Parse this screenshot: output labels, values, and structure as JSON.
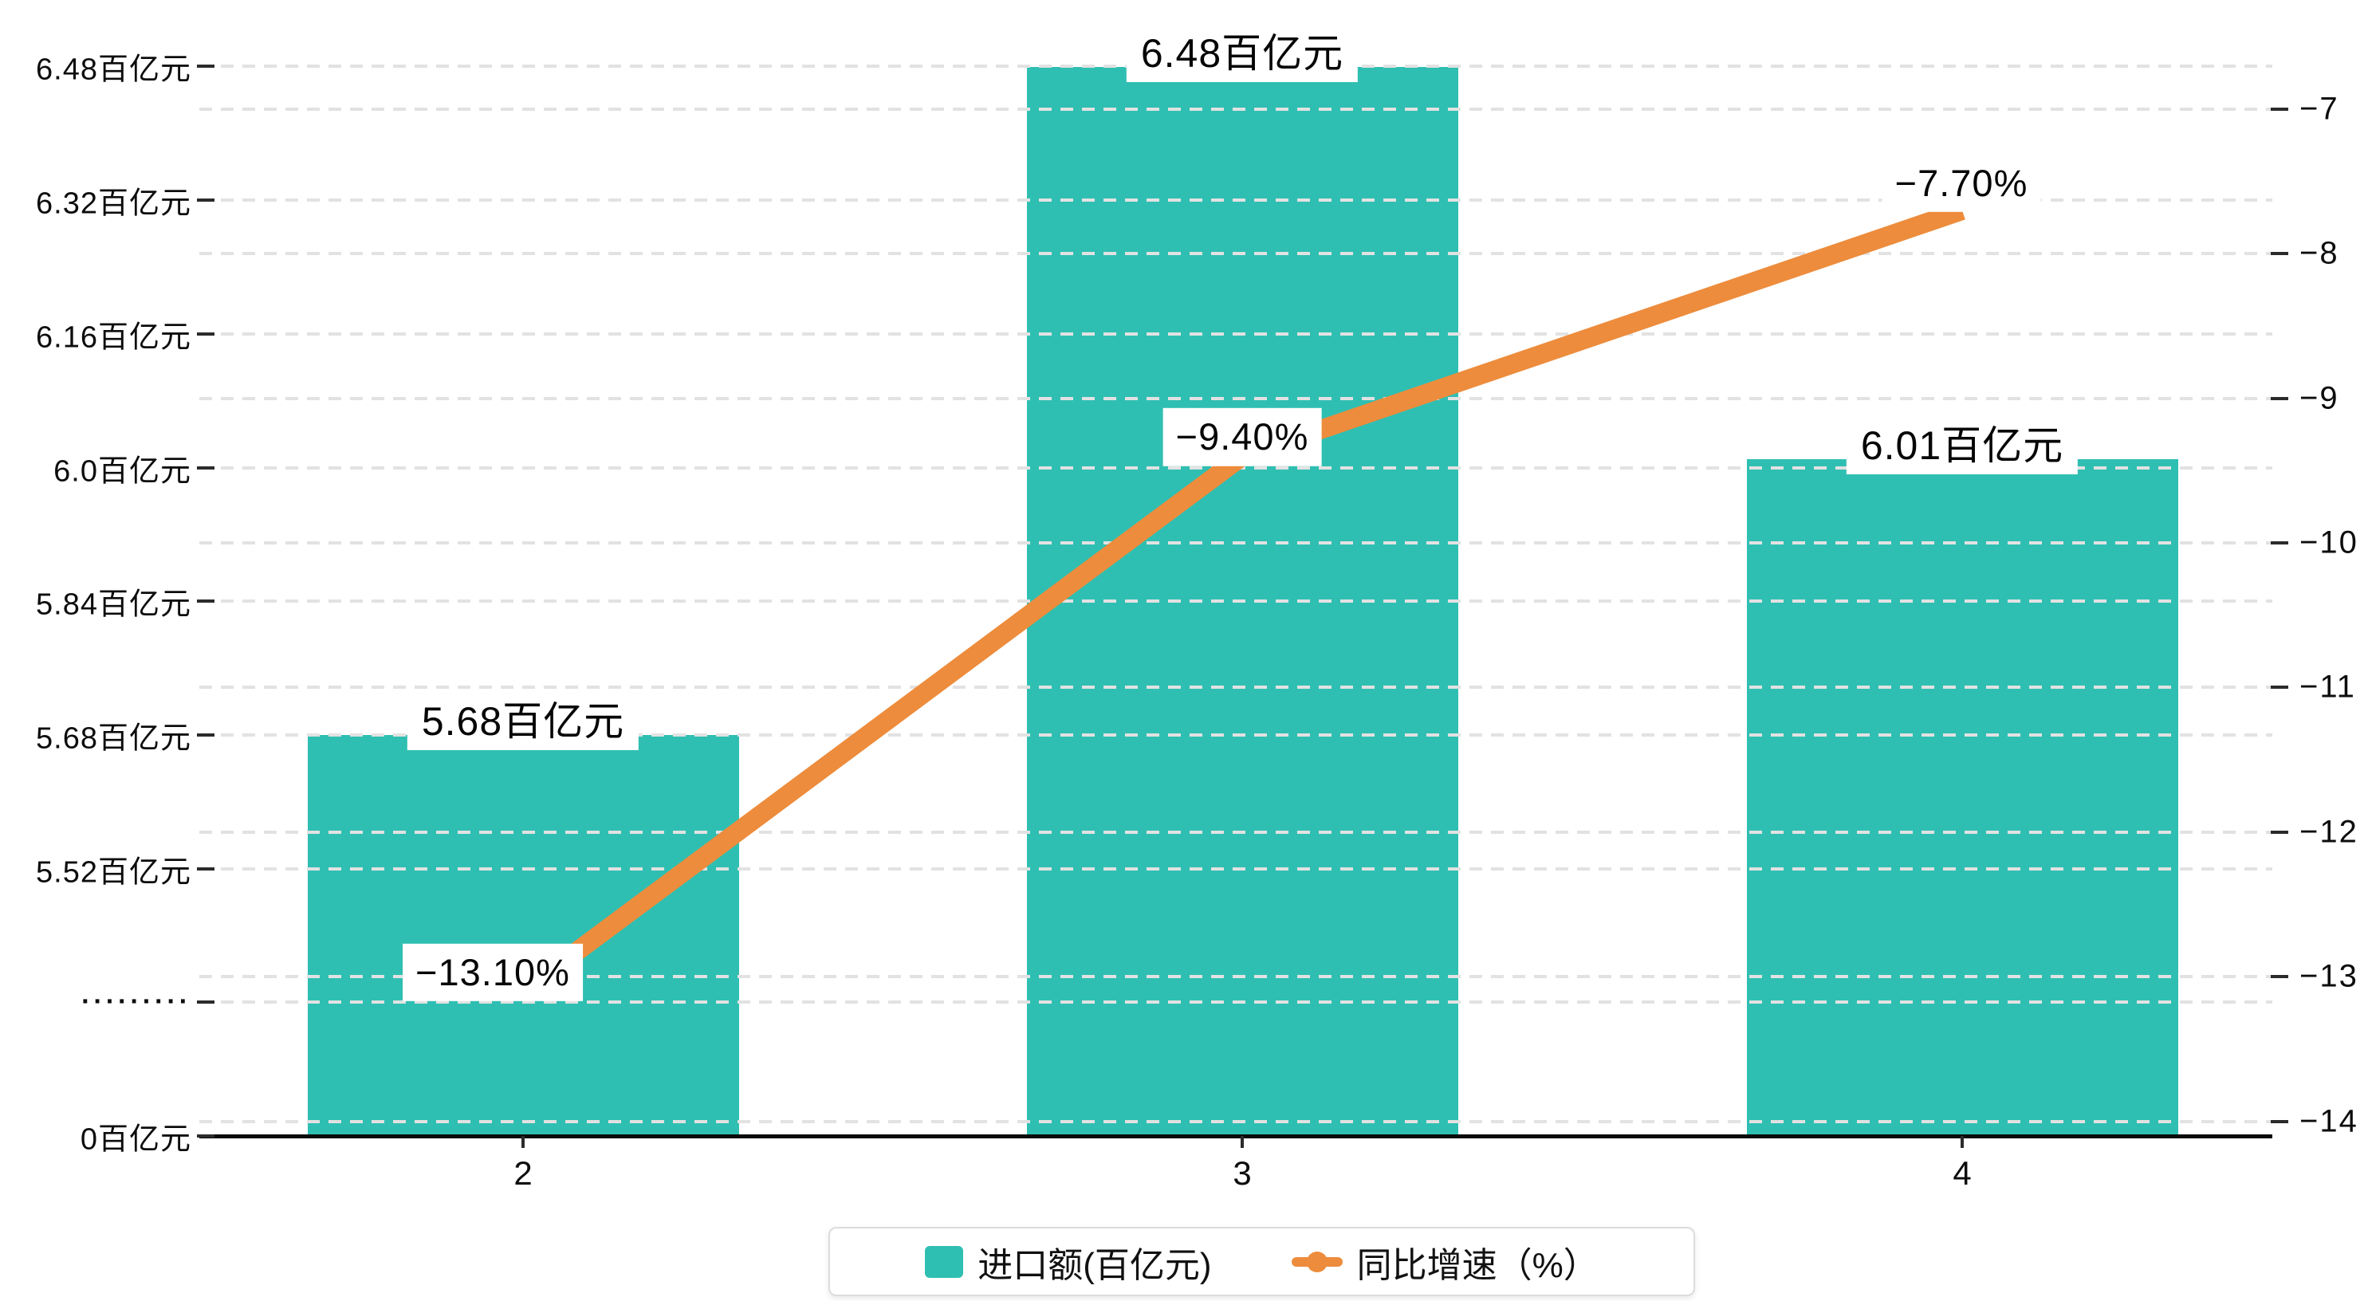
{
  "chart_data": {
    "type": "bar+line dual-axis combo",
    "categories": [
      "2",
      "3",
      "4"
    ],
    "series": [
      {
        "name": "进口额(百亿元)",
        "type": "bar",
        "values": [
          5.68,
          6.48,
          6.01
        ],
        "value_labels": [
          "5.68百亿元",
          "6.48百亿元",
          "6.01百亿元"
        ],
        "color": "#2fbfb2",
        "axis": "left"
      },
      {
        "name": "同比增速（%）",
        "type": "line",
        "values": [
          -13.1,
          -9.4,
          -7.7
        ],
        "value_labels": [
          "−13.10%",
          "−9.40%",
          "−7.70%"
        ],
        "color": "#ed8c3c",
        "axis": "right"
      }
    ],
    "left_axis": {
      "unit": "百亿元",
      "broken_axis": true,
      "tick_labels_bottom_to_top": [
        "0百亿元",
        "·········",
        "5.52百亿元",
        "5.68百亿元",
        "5.84百亿元",
        "6.0百亿元",
        "6.16百亿元",
        "6.32百亿元",
        "6.48百亿元"
      ]
    },
    "right_axis": {
      "unit": "%",
      "tick_labels_top_to_bottom": [
        "−7",
        "−8",
        "−9",
        "−10",
        "−11",
        "−12",
        "−13",
        "−14"
      ],
      "max": -7,
      "min": -14
    },
    "grid": "horizontal dashed gridlines for both axes",
    "legend_position": "bottom-center"
  },
  "legend": {
    "bar_label": "进口额(百亿元)",
    "line_label": "同比增速（%）"
  },
  "colors": {
    "bar": "#2fbfb2",
    "line": "#ed8c3c",
    "gridline": "#e2e2e2",
    "axis": "#0a0a0a",
    "label_bg": "#ffffff",
    "text": "#0d0d0d"
  }
}
